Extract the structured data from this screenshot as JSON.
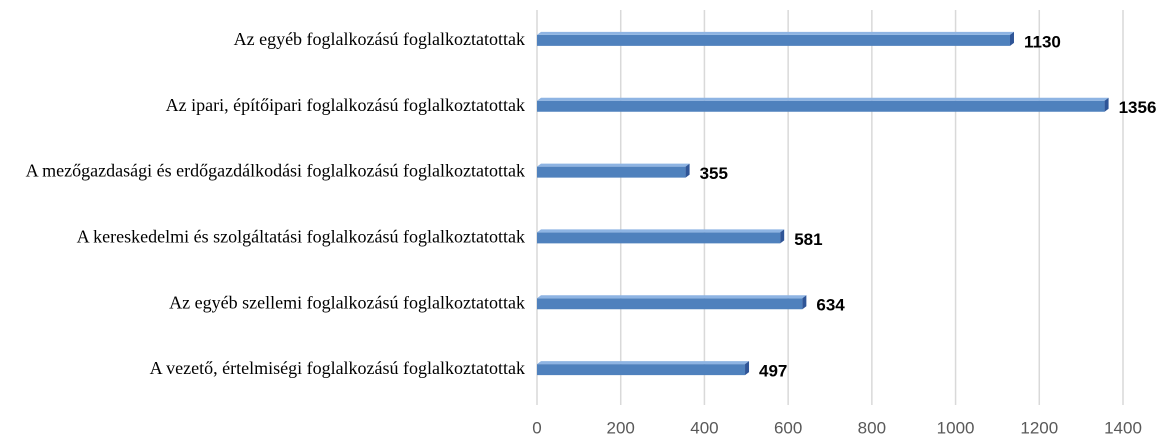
{
  "chart_data": {
    "type": "barh",
    "categories": [
      "Az egyéb foglalkozású foglalkoztatottak",
      "Az ipari, építőipari foglalkozású foglalkoztatottak",
      "A mezőgazdasági és erdőgazdálkodási foglalkozású foglalkoztatottak",
      "A kereskedelmi és szolgáltatási foglalkozású foglalkoztatottak",
      "Az egyéb szellemi foglalkozású foglalkoztatottak",
      "A vezető, értelmiségi foglalkozású foglalkoztatottak"
    ],
    "values": [
      1130,
      1356,
      355,
      581,
      634,
      497
    ],
    "color": "#4f81bd",
    "xlim": [
      0,
      1400
    ],
    "xticks": [
      0,
      200,
      400,
      600,
      800,
      1000,
      1200,
      1400
    ],
    "grid": true
  }
}
